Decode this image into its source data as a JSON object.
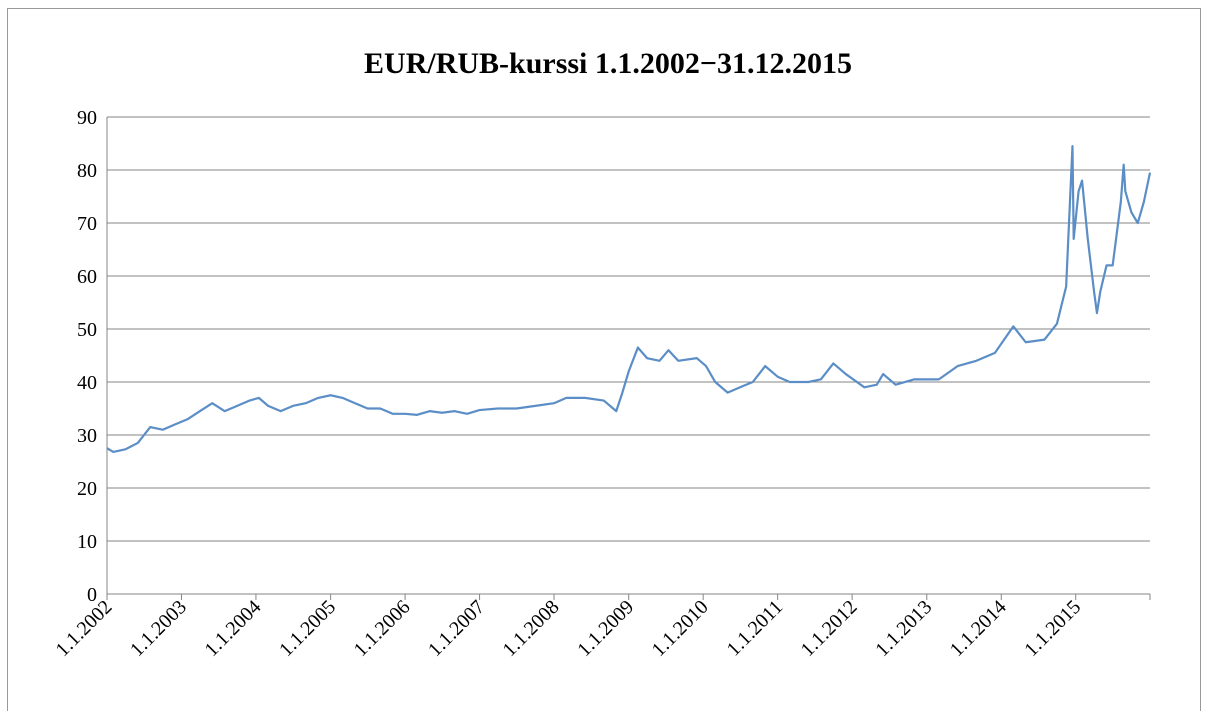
{
  "chart_data": {
    "type": "line",
    "title": "EUR/RUB-kurssi 1.1.2002−31.12.2015",
    "x": [
      "2002-01-01",
      "2002-02-01",
      "2002-04-01",
      "2002-06-01",
      "2002-08-01",
      "2002-10-01",
      "2002-12-01",
      "2003-02-01",
      "2003-04-01",
      "2003-06-01",
      "2003-08-01",
      "2003-10-01",
      "2003-12-01",
      "2004-01-15",
      "2004-03-01",
      "2004-05-01",
      "2004-07-01",
      "2004-09-01",
      "2004-11-01",
      "2005-01-01",
      "2005-03-01",
      "2005-05-01",
      "2005-07-01",
      "2005-09-01",
      "2005-11-01",
      "2006-01-01",
      "2006-03-01",
      "2006-05-01",
      "2006-07-01",
      "2006-09-01",
      "2006-11-01",
      "2007-01-01",
      "2007-04-01",
      "2007-07-01",
      "2007-10-01",
      "2008-01-01",
      "2008-03-01",
      "2008-06-01",
      "2008-09-01",
      "2008-11-01",
      "2008-12-01",
      "2009-01-01",
      "2009-02-15",
      "2009-04-01",
      "2009-06-01",
      "2009-07-15",
      "2009-09-01",
      "2009-12-01",
      "2010-01-15",
      "2010-03-01",
      "2010-05-01",
      "2010-07-01",
      "2010-09-01",
      "2010-11-01",
      "2011-01-01",
      "2011-03-01",
      "2011-06-01",
      "2011-08-01",
      "2011-10-01",
      "2011-12-01",
      "2012-03-01",
      "2012-05-01",
      "2012-06-01",
      "2012-08-01",
      "2012-11-01",
      "2013-03-01",
      "2013-06-01",
      "2013-09-01",
      "2013-12-01",
      "2014-03-01",
      "2014-05-01",
      "2014-08-01",
      "2014-10-01",
      "2014-11-15",
      "2014-12-16",
      "2014-12-22",
      "2015-01-15",
      "2015-02-01",
      "2015-03-01",
      "2015-04-01",
      "2015-04-15",
      "2015-05-01",
      "2015-06-01",
      "2015-07-01",
      "2015-08-10",
      "2015-08-24",
      "2015-09-01",
      "2015-10-01",
      "2015-11-01",
      "2015-12-01",
      "2015-12-31"
    ],
    "series": [
      {
        "name": "EUR/RUB",
        "color": "#5b8ec6",
        "values": [
          27.5,
          26.8,
          27.3,
          28.5,
          31.5,
          31,
          32,
          33,
          34.5,
          36,
          34.5,
          35.5,
          36.5,
          37,
          35.5,
          34.5,
          35.5,
          36,
          37,
          37.5,
          37,
          36,
          35,
          35,
          34,
          34,
          33.8,
          34.5,
          34.2,
          34.5,
          34,
          34.7,
          35,
          35,
          35.5,
          36,
          37,
          37,
          36.5,
          34.5,
          38,
          42,
          46.5,
          44.5,
          44,
          46,
          44,
          44.5,
          43,
          40,
          38,
          39,
          40,
          43,
          41,
          40,
          40,
          40.5,
          43.5,
          41.5,
          39,
          39.5,
          41.5,
          39.5,
          40.5,
          40.5,
          43,
          44,
          45.5,
          50.5,
          47.5,
          48,
          51,
          58,
          84.5,
          67,
          76,
          78,
          67,
          57,
          53,
          57,
          62,
          62,
          74,
          81,
          76,
          72,
          70,
          74,
          79.5
        ]
      }
    ],
    "xlim": [
      "2002-01-01",
      "2015-12-31"
    ],
    "xticks": [
      {
        "value": "2002-01-01",
        "label": "1.1.2002"
      },
      {
        "value": "2003-01-01",
        "label": "1.1.2003"
      },
      {
        "value": "2004-01-01",
        "label": "1.1.2004"
      },
      {
        "value": "2005-01-01",
        "label": "1.1.2005"
      },
      {
        "value": "2006-01-01",
        "label": "1.1.2006"
      },
      {
        "value": "2007-01-01",
        "label": "1.1.2007"
      },
      {
        "value": "2008-01-01",
        "label": "1.1.2008"
      },
      {
        "value": "2009-01-01",
        "label": "1.1.2009"
      },
      {
        "value": "2010-01-01",
        "label": "1.1.2010"
      },
      {
        "value": "2011-01-01",
        "label": "1.1.2011"
      },
      {
        "value": "2012-01-01",
        "label": "1.1.2012"
      },
      {
        "value": "2013-01-01",
        "label": "1.1.2013"
      },
      {
        "value": "2014-01-01",
        "label": "1.1.2014"
      },
      {
        "value": "2015-01-01",
        "label": "1.1.2015"
      }
    ],
    "ylim": [
      0,
      90
    ],
    "yticks": [
      0,
      10,
      20,
      30,
      40,
      50,
      60,
      70,
      80,
      90
    ],
    "grid": true
  }
}
